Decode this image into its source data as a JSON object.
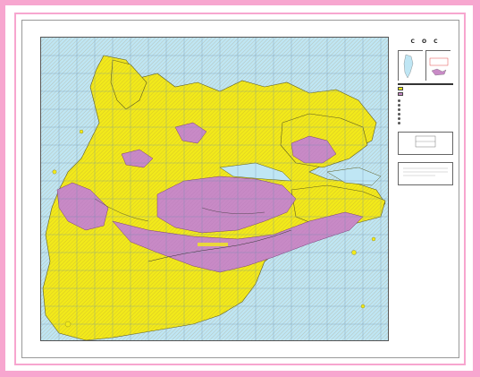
{
  "colors": {
    "page_border": "#f7a6cf",
    "water": "#bfe6f4",
    "land": "#f2ea1a",
    "highland": "#c88ac6",
    "grid": "#6a8fb0",
    "coast": "#5a5a20"
  },
  "title": {
    "main": "C O C",
    "line1": "",
    "line2": ""
  },
  "map": {
    "place_label": ""
  },
  "legend": {
    "heading": "",
    "items": []
  }
}
